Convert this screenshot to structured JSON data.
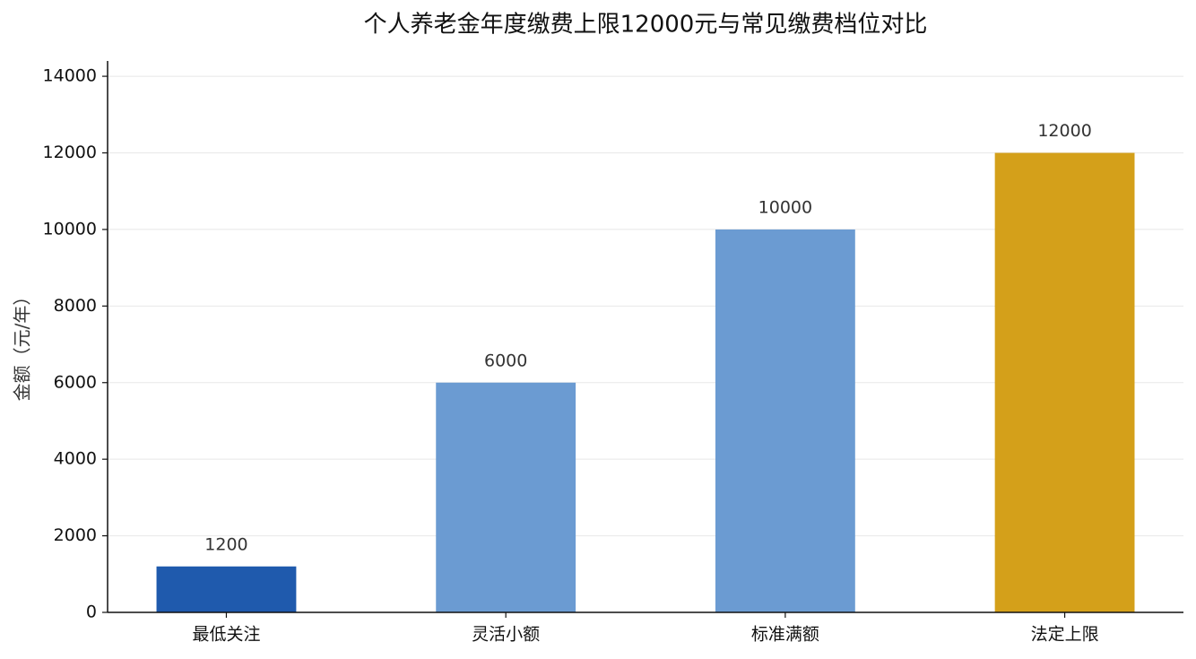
{
  "chart_data": {
    "type": "bar",
    "title": "个人养老金年度缴费上限12000元与常见缴费档位对比",
    "y_label": "金额（元/年）",
    "categories": [
      "最低关注",
      "灵活小额",
      "标准满额",
      "法定上限"
    ],
    "values": [
      1200,
      6000,
      10000,
      12000
    ],
    "colors": [
      "#1f5aad",
      "#6b9bd2",
      "#6b9bd2",
      "#d4a01a"
    ],
    "ylim": [
      0,
      14400
    ],
    "yticks": [
      0,
      2000,
      4000,
      6000,
      8000,
      10000,
      12000,
      14000
    ],
    "grid": true
  }
}
